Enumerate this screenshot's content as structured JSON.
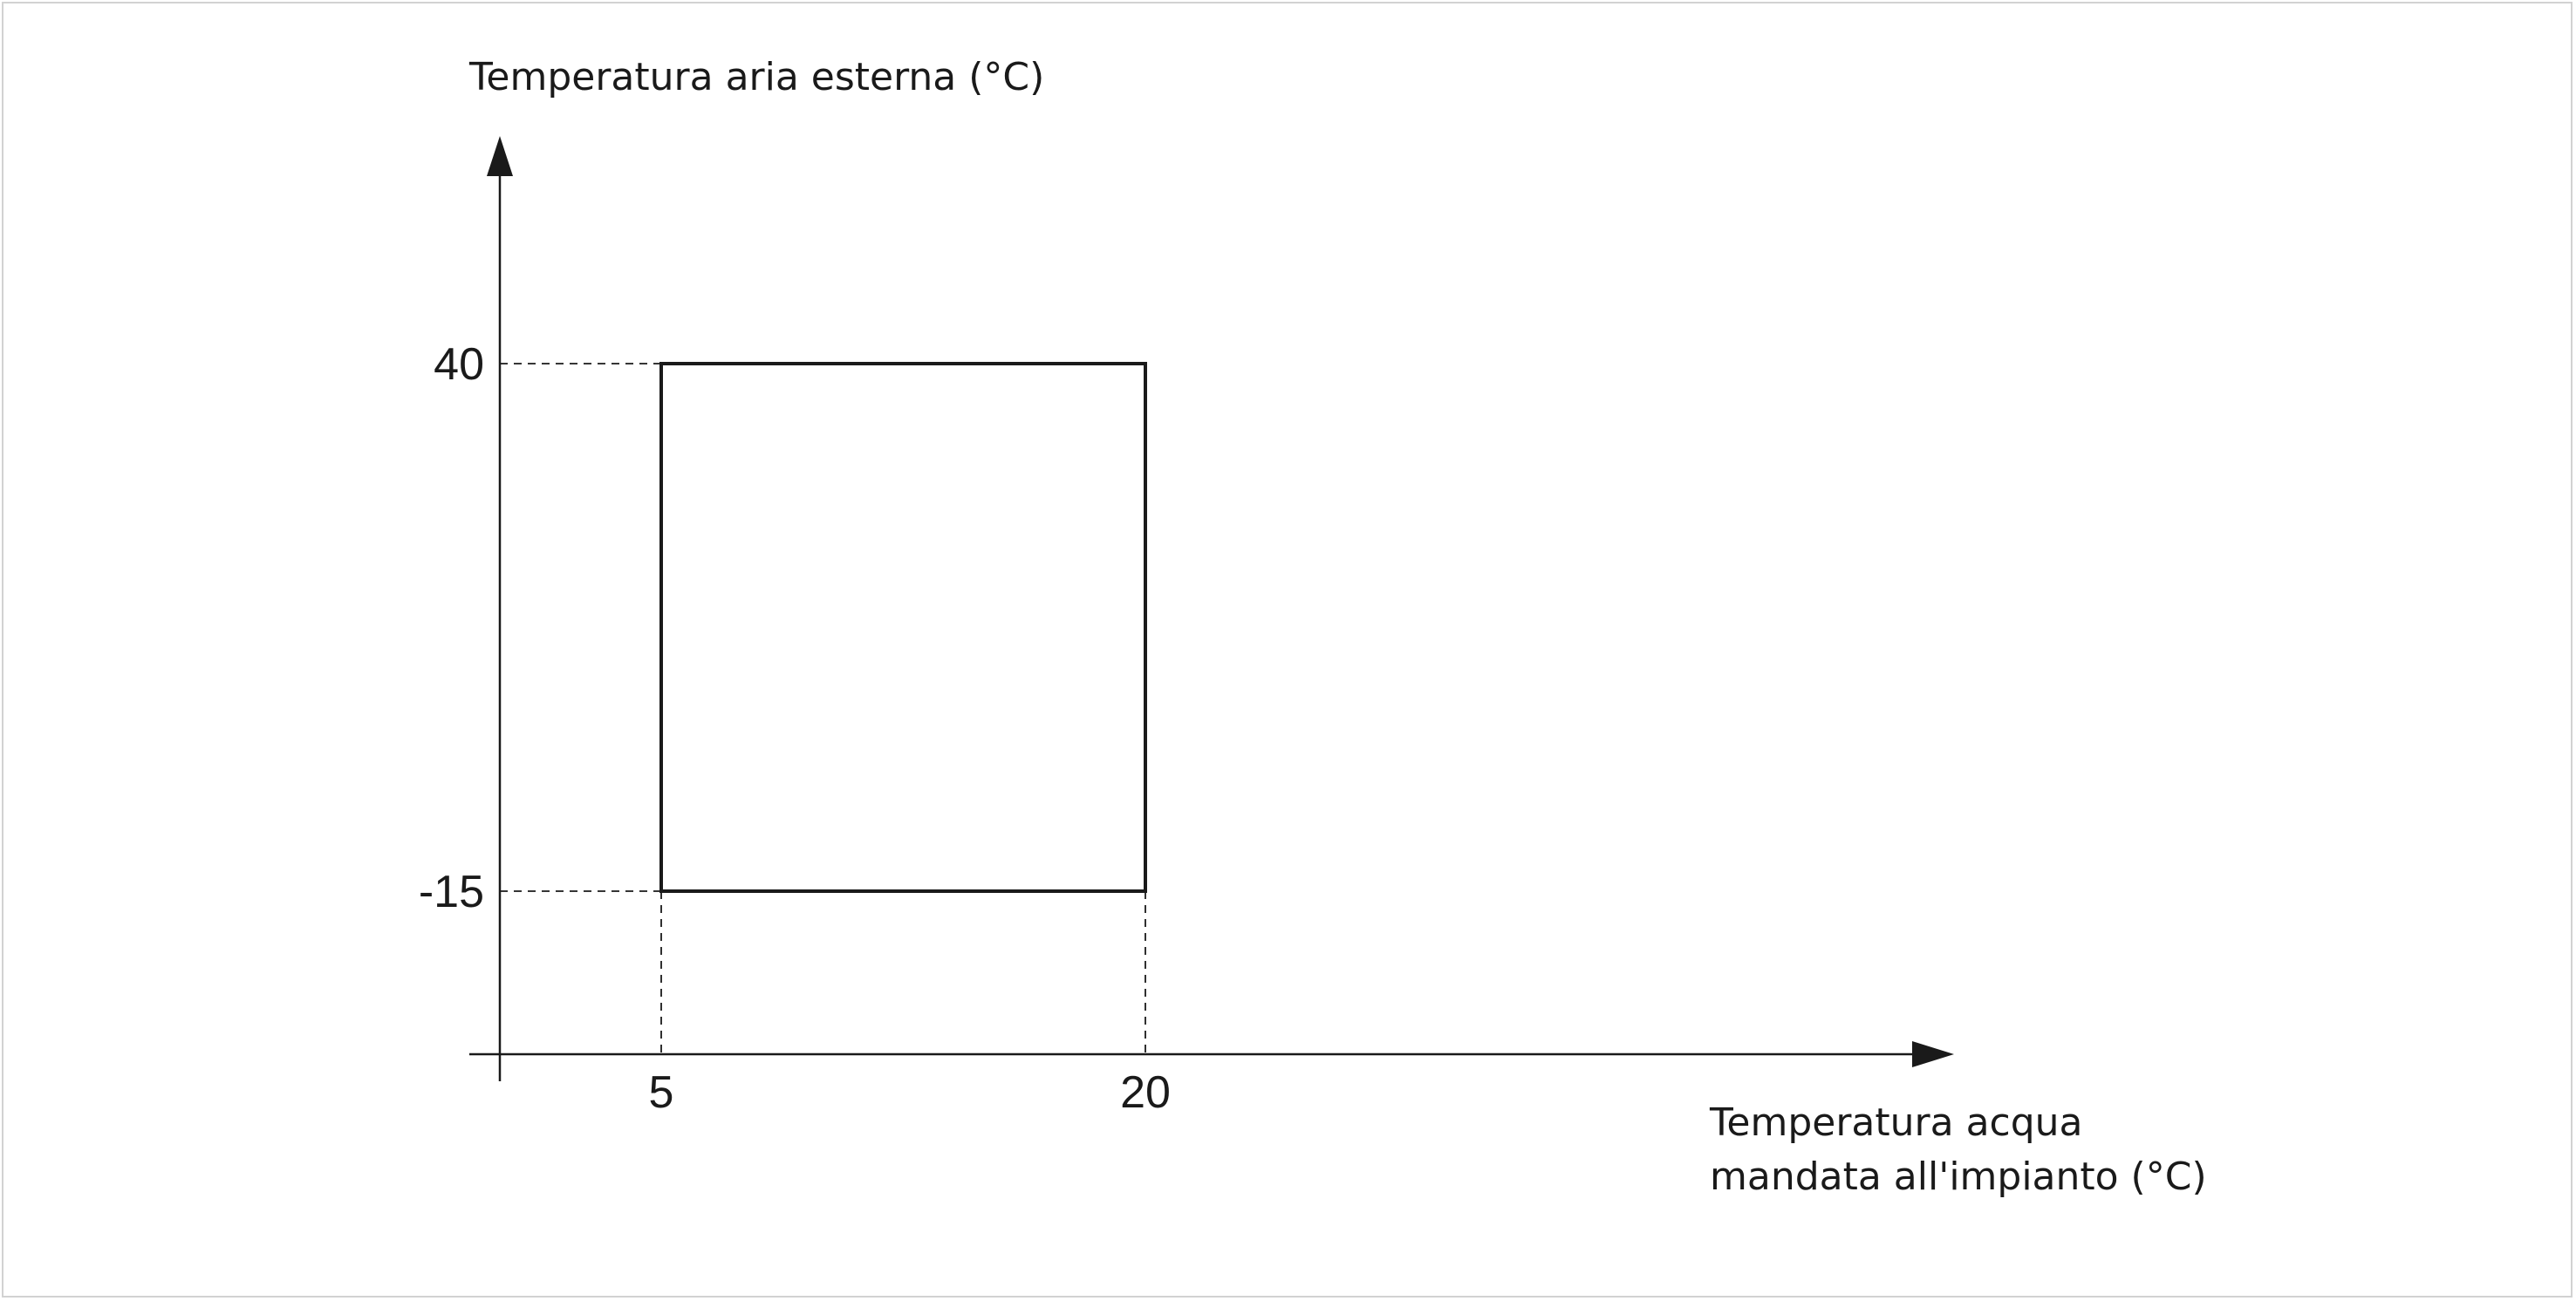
{
  "chart_data": {
    "type": "area",
    "title": "",
    "xlabel": "Temperatura acqua mandata all'impianto (°C)",
    "ylabel": "Temperatura aria esterna (°C)",
    "xlabel_lines": [
      "Temperatura acqua",
      "mandata all'impianto (°C)"
    ],
    "xlim": [
      0,
      45
    ],
    "ylim": [
      -30,
      68
    ],
    "x_ticks": [
      5,
      20
    ],
    "y_ticks": [
      -15,
      40
    ],
    "x_tick_labels": [
      "5",
      "20"
    ],
    "y_tick_labels": [
      "-15",
      "40"
    ],
    "grid": false,
    "legend": "none",
    "region": {
      "name": "",
      "x_min": 5,
      "x_max": 20,
      "y_min": -15,
      "y_max": 40
    },
    "colors": {
      "outline": "#1a1a1a",
      "guides": "#1a1a1a",
      "frame": "#d2d2d2"
    }
  }
}
